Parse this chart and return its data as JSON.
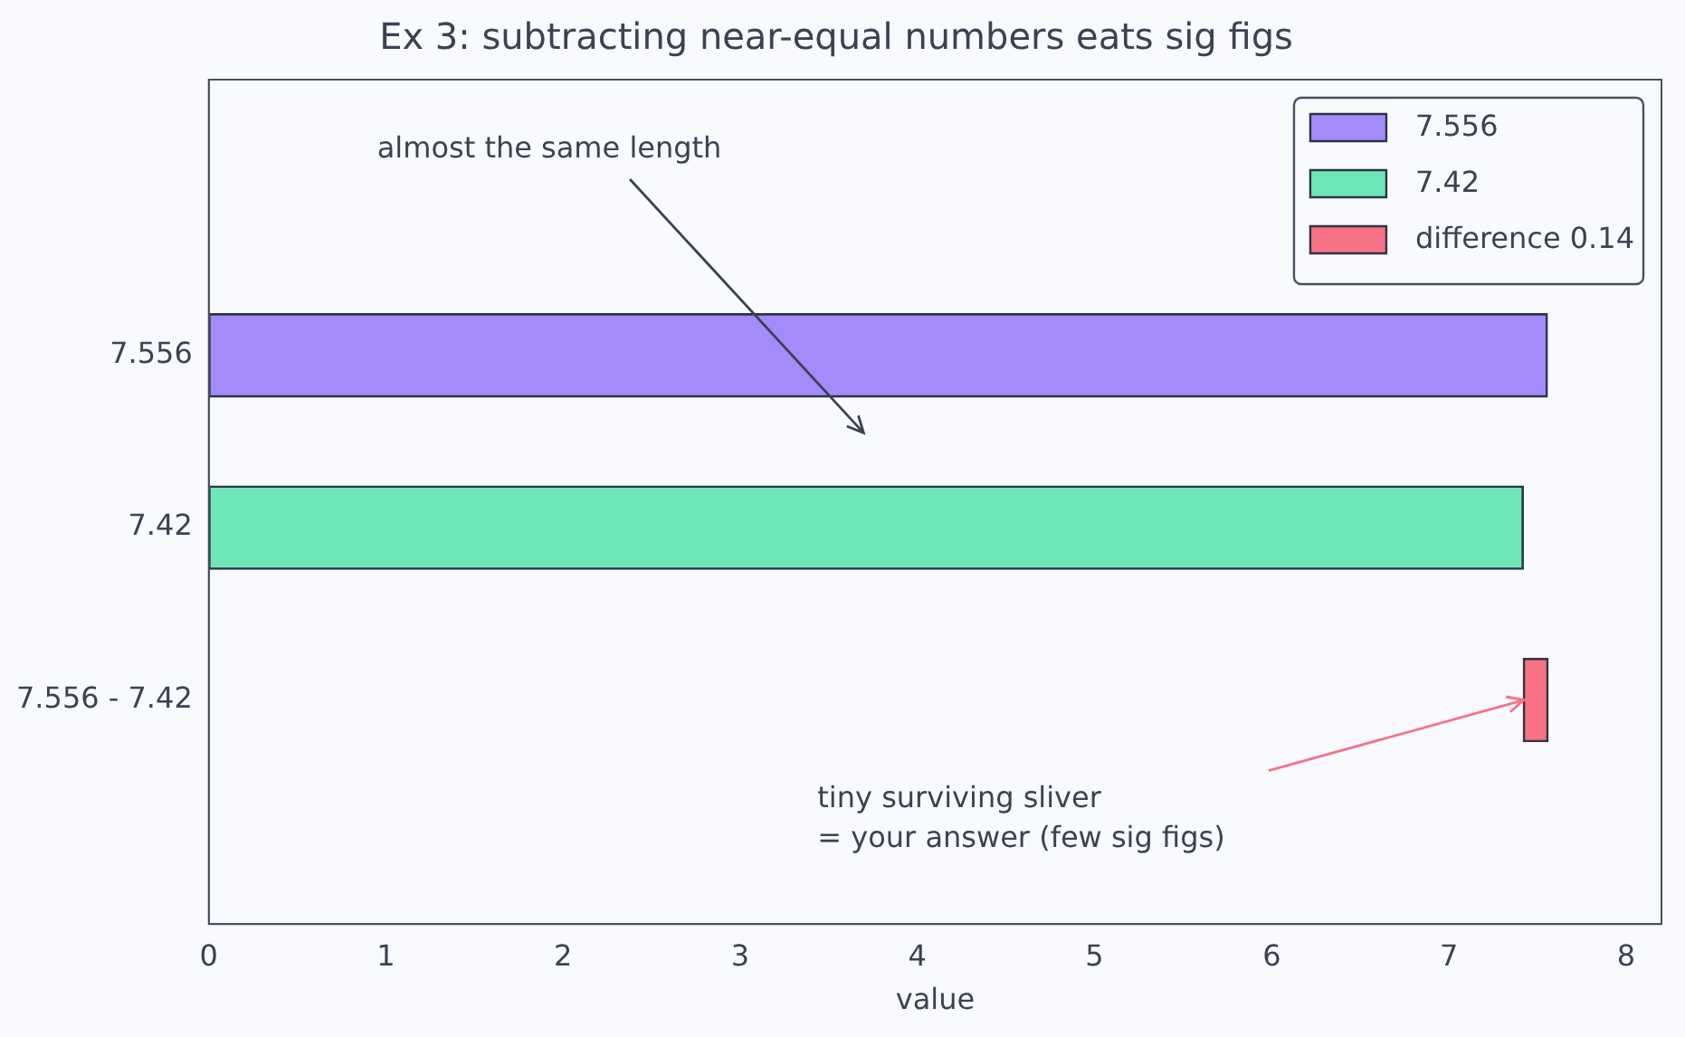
{
  "chart_data": {
    "type": "bar",
    "orientation": "horizontal",
    "title": "Ex 3: subtracting near-equal numbers eats sig figs",
    "xlabel": "value",
    "categories": [
      "7.556",
      "7.42",
      "7.556 - 7.42"
    ],
    "series": [
      {
        "name": "7.556",
        "color": "#a48afa",
        "values": [
          7.556,
          null,
          null
        ]
      },
      {
        "name": "7.42",
        "color": "#6ee7b7",
        "values": [
          null,
          7.42,
          null
        ]
      },
      {
        "name": "difference 0.14",
        "color": "#f87185",
        "values": [
          null,
          null,
          0.14
        ],
        "base": [
          null,
          null,
          7.42
        ]
      }
    ],
    "xlim": [
      0,
      8.2
    ],
    "xticks": [
      0,
      1,
      2,
      3,
      4,
      5,
      6,
      7,
      8
    ],
    "grid": false,
    "legend": "top right",
    "annotations": [
      "almost the same length",
      "tiny surviving sliver\n= your answer (few sig figs)"
    ]
  }
}
